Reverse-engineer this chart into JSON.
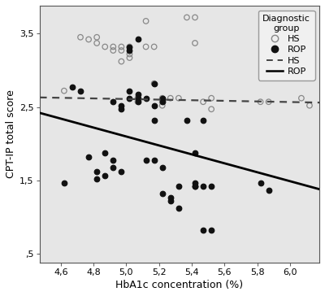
{
  "title": "",
  "xlabel": "HbA1c concentration (%)",
  "ylabel": "CPT-IP total score",
  "xlim": [
    4.47,
    6.18
  ],
  "ylim": [
    0.38,
    3.88
  ],
  "xticks": [
    4.6,
    4.8,
    5.0,
    5.2,
    5.4,
    5.6,
    5.8,
    6.0
  ],
  "yticks": [
    0.5,
    1.5,
    2.5,
    3.5
  ],
  "ytick_labels": [
    ",5",
    "1,5",
    "2,5",
    "3,5"
  ],
  "xtick_labels": [
    "4,6",
    "4,8",
    "5,0",
    "5,2",
    "5,4",
    "5,6",
    "5,8",
    "6,0"
  ],
  "bg_color": "#e6e6e6",
  "fig_color": "#ffffff",
  "legend_title": "Diagnostic\ngroup",
  "hs_x": [
    4.62,
    4.72,
    4.77,
    4.82,
    4.82,
    4.87,
    4.92,
    4.92,
    4.97,
    4.97,
    4.97,
    5.02,
    5.02,
    5.02,
    5.07,
    5.07,
    5.12,
    5.12,
    5.17,
    5.17,
    5.22,
    5.22,
    5.22,
    5.27,
    5.32,
    5.37,
    5.42,
    5.42,
    5.47,
    5.52,
    5.52,
    5.82,
    5.87,
    6.07,
    6.12
  ],
  "hs_y": [
    2.72,
    3.45,
    3.42,
    3.45,
    3.37,
    3.32,
    3.32,
    3.27,
    3.32,
    3.27,
    3.12,
    3.32,
    3.22,
    3.17,
    2.62,
    2.57,
    3.67,
    3.32,
    3.32,
    2.82,
    2.62,
    2.57,
    2.52,
    2.62,
    2.62,
    3.72,
    3.72,
    3.37,
    2.57,
    2.62,
    2.47,
    2.57,
    2.57,
    2.62,
    2.52
  ],
  "rop_x": [
    4.62,
    4.67,
    4.72,
    4.77,
    4.82,
    4.82,
    4.87,
    4.87,
    4.92,
    4.92,
    4.92,
    4.97,
    4.97,
    4.97,
    5.02,
    5.02,
    5.02,
    5.02,
    5.07,
    5.07,
    5.07,
    5.07,
    5.12,
    5.12,
    5.17,
    5.17,
    5.17,
    5.17,
    5.22,
    5.22,
    5.22,
    5.22,
    5.27,
    5.27,
    5.32,
    5.32,
    5.37,
    5.42,
    5.42,
    5.42,
    5.42,
    5.47,
    5.47,
    5.47,
    5.52,
    5.52,
    5.82,
    5.87
  ],
  "rop_y": [
    1.47,
    2.77,
    2.72,
    1.82,
    1.62,
    1.52,
    1.57,
    1.87,
    2.57,
    1.77,
    1.67,
    2.52,
    2.47,
    1.62,
    3.32,
    3.27,
    2.72,
    2.62,
    3.42,
    2.67,
    2.62,
    2.57,
    2.62,
    1.77,
    2.82,
    2.52,
    2.32,
    1.77,
    2.62,
    2.57,
    1.67,
    1.32,
    1.27,
    1.22,
    1.42,
    1.12,
    2.32,
    1.87,
    1.47,
    1.42,
    1.42,
    2.32,
    1.42,
    0.82,
    1.42,
    0.82,
    1.47,
    1.37
  ],
  "rop_line_x": [
    4.47,
    6.18
  ],
  "rop_line_y": [
    2.42,
    1.38
  ],
  "hs_line_x": [
    4.47,
    6.18
  ],
  "hs_line_y": [
    2.63,
    2.56
  ]
}
